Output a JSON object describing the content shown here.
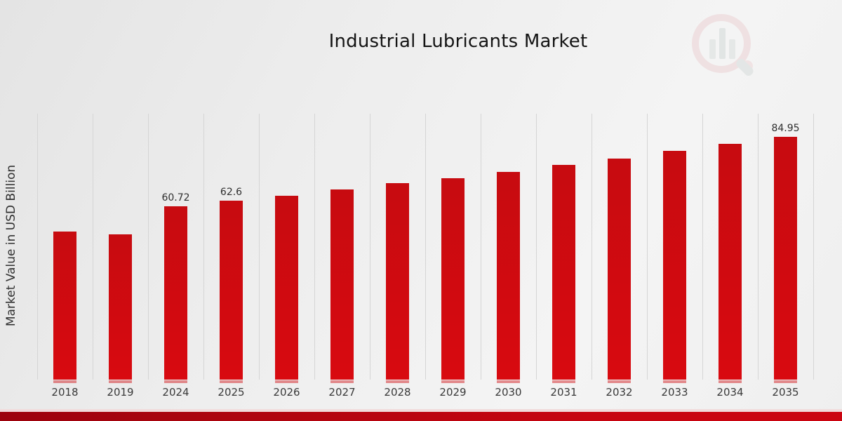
{
  "chart_data": {
    "type": "bar",
    "title": "Industrial Lubricants Market",
    "ylabel": "Market Value in USD Billion",
    "xlabel": "",
    "categories": [
      "2018",
      "2019",
      "2024",
      "2025",
      "2026",
      "2027",
      "2028",
      "2029",
      "2030",
      "2031",
      "2032",
      "2033",
      "2034",
      "2035"
    ],
    "values": [
      51.9,
      50.7,
      60.72,
      62.6,
      64.3,
      66.6,
      68.6,
      70.5,
      72.7,
      75.2,
      77.2,
      80.0,
      82.4,
      84.95
    ],
    "data_labels": {
      "2024": "60.72",
      "2025": "62.6",
      "2035": "84.95"
    },
    "ylim": [
      0,
      93
    ],
    "grid": "vertical-category-separators",
    "legend": "none",
    "bar_color": "#d20b10",
    "colors": {
      "gridline": "#d5d5d5",
      "axis_text": "#3a3a3a",
      "footer_band": "#b2040f",
      "background": "#ededed"
    }
  },
  "watermark": {
    "name": "magnifier-bar-chart-logo"
  }
}
